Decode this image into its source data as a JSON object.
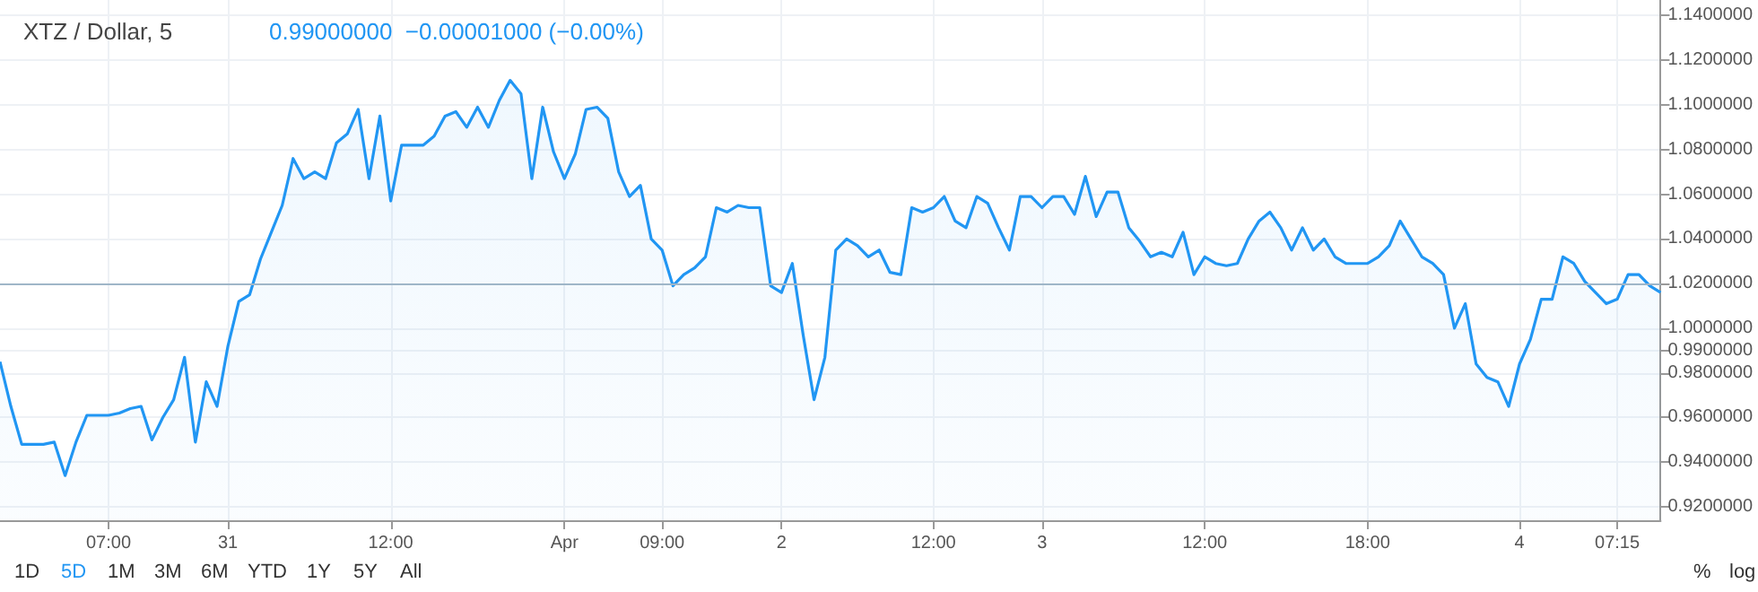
{
  "chart_data": {
    "type": "area",
    "title": "XTZ / Dollar, 5",
    "subtitle": "0.99000000  −0.00001000 (−0.00%)",
    "categories": [
      null,
      null,
      null,
      null,
      null,
      null,
      null,
      null,
      null,
      null,
      "07:00",
      null,
      null,
      null,
      null,
      null,
      null,
      null,
      null,
      null,
      null,
      "31",
      null,
      null,
      null,
      null,
      null,
      null,
      null,
      null,
      null,
      null,
      null,
      null,
      null,
      null,
      "12:00",
      null,
      null,
      null,
      null,
      null,
      null,
      null,
      null,
      null,
      null,
      null,
      null,
      null,
      null,
      null,
      "Apr",
      null,
      null,
      null,
      null,
      null,
      null,
      null,
      null,
      "09:00",
      null,
      null,
      null,
      null,
      null,
      null,
      null,
      null,
      null,
      null,
      "2",
      null,
      null,
      null,
      null,
      null,
      null,
      null,
      null,
      null,
      null,
      null,
      null,
      null,
      "12:00",
      null,
      null,
      null,
      null,
      null,
      null,
      null,
      null,
      null,
      "3",
      null,
      null,
      null,
      null,
      null,
      null,
      null,
      null,
      null,
      null,
      null,
      null,
      null,
      null,
      "12:00",
      null,
      null,
      null,
      null,
      null,
      null,
      null,
      null,
      null,
      null,
      null,
      null,
      null,
      null,
      "18:00",
      null,
      null,
      null,
      null,
      null,
      null,
      null,
      null,
      null,
      null,
      null,
      null,
      null,
      "4",
      null,
      null,
      null,
      null,
      null,
      null,
      null,
      null,
      "07:15",
      null,
      null,
      null,
      null
    ],
    "series": [
      {
        "color": "#2196f3",
        "values": [
          0.985,
          0.965,
          0.948,
          0.948,
          0.948,
          0.949,
          0.934,
          0.949,
          0.961,
          0.961,
          0.961,
          0.962,
          0.964,
          0.965,
          0.95,
          0.96,
          0.968,
          0.987,
          0.949,
          0.976,
          0.965,
          0.992,
          1.012,
          1.015,
          1.031,
          1.043,
          1.055,
          1.076,
          1.067,
          1.07,
          1.067,
          1.083,
          1.087,
          1.098,
          1.067,
          1.095,
          1.057,
          1.082,
          1.082,
          1.082,
          1.086,
          1.095,
          1.097,
          1.09,
          1.099,
          1.09,
          1.102,
          1.111,
          1.105,
          1.067,
          1.099,
          1.079,
          1.067,
          1.078,
          1.098,
          1.099,
          1.094,
          1.07,
          1.059,
          1.064,
          1.04,
          1.035,
          1.019,
          1.024,
          1.027,
          1.032,
          1.054,
          1.052,
          1.055,
          1.054,
          1.054,
          1.019,
          1.016,
          1.029,
          0.997,
          0.968,
          0.987,
          1.035,
          1.04,
          1.037,
          1.032,
          1.035,
          1.025,
          1.024,
          1.054,
          1.052,
          1.054,
          1.059,
          1.048,
          1.045,
          1.059,
          1.056,
          1.045,
          1.035,
          1.059,
          1.059,
          1.054,
          1.059,
          1.059,
          1.051,
          1.068,
          1.05,
          1.061,
          1.061,
          1.045,
          1.039,
          1.032,
          1.034,
          1.032,
          1.043,
          1.024,
          1.032,
          1.029,
          1.028,
          1.029,
          1.04,
          1.048,
          1.052,
          1.045,
          1.035,
          1.045,
          1.035,
          1.04,
          1.032,
          1.029,
          1.029,
          1.029,
          1.032,
          1.037,
          1.048,
          1.04,
          1.032,
          1.029,
          1.024,
          1.0,
          1.011,
          0.984,
          0.978,
          0.976,
          0.965,
          0.984,
          0.995,
          1.013,
          1.013,
          1.032,
          1.029,
          1.021,
          1.016,
          1.011,
          1.013,
          1.024,
          1.024,
          1.019,
          1.016
        ]
      }
    ],
    "ylim": [
      0.914,
      1.147
    ],
    "yticks": [
      {
        "value": 0.92,
        "label": "0.9200000"
      },
      {
        "value": 0.94,
        "label": "0.9400000"
      },
      {
        "value": 0.96,
        "label": "0.9600000"
      },
      {
        "value": 0.98,
        "label": "0.9800000"
      },
      {
        "value": 0.99,
        "label": "0.9900000"
      },
      {
        "value": 1.0,
        "label": "1.0000000"
      },
      {
        "value": 1.02,
        "label": "1.0200000"
      },
      {
        "value": 1.04,
        "label": "1.0400000"
      },
      {
        "value": 1.06,
        "label": "1.0600000"
      },
      {
        "value": 1.08,
        "label": "1.0800000"
      },
      {
        "value": 1.1,
        "label": "1.1000000"
      },
      {
        "value": 1.12,
        "label": "1.1200000"
      },
      {
        "value": 1.14,
        "label": "1.1400000"
      }
    ],
    "ref_lines": [
      {
        "axis": "y",
        "value": 1.02,
        "color": "#9fb6c8"
      }
    ],
    "annotations": [
      "1D",
      "5D",
      "1M",
      "3M",
      "6M",
      "YTD",
      "1Y",
      "5Y",
      "All",
      "%",
      "log"
    ],
    "grid": true,
    "marker": "none",
    "line_style": "solid"
  }
}
